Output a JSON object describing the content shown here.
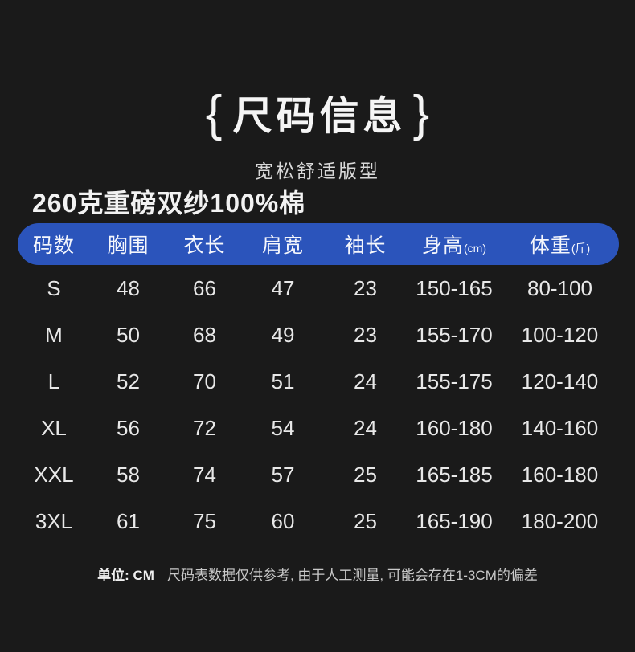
{
  "page": {
    "title_brace_open": "{",
    "title_text": "尺码信息",
    "title_brace_close": "}",
    "subtitle": "宽松舒适版型",
    "heading": "260克重磅双纱100%棉"
  },
  "size_table": {
    "columns": [
      "码数",
      "胸围",
      "衣长",
      "肩宽",
      "袖长",
      "身高",
      "体重"
    ],
    "column_units": [
      "",
      "",
      "",
      "",
      "",
      "(cm)",
      "(斤)"
    ],
    "rows": [
      [
        "S",
        "48",
        "66",
        "47",
        "23",
        "150-165",
        "80-100"
      ],
      [
        "M",
        "50",
        "68",
        "49",
        "23",
        "155-170",
        "100-120"
      ],
      [
        "L",
        "52",
        "70",
        "51",
        "24",
        "155-175",
        "120-140"
      ],
      [
        "XL",
        "56",
        "72",
        "54",
        "24",
        "160-180",
        "140-160"
      ],
      [
        "XXL",
        "58",
        "74",
        "57",
        "25",
        "165-185",
        "160-180"
      ],
      [
        "3XL",
        "61",
        "75",
        "60",
        "25",
        "165-190",
        "180-200"
      ]
    ]
  },
  "footer": {
    "unit_label": "单位: CM",
    "note": "尺码表数据仅供参考, 由于人工测量, 可能会存在1-3CM的偏差"
  },
  "colors": {
    "background": "#1a1a1a",
    "header_bar": "#2b54bb",
    "text_primary": "#f2f2f2",
    "text_muted": "#c9c9c9"
  }
}
